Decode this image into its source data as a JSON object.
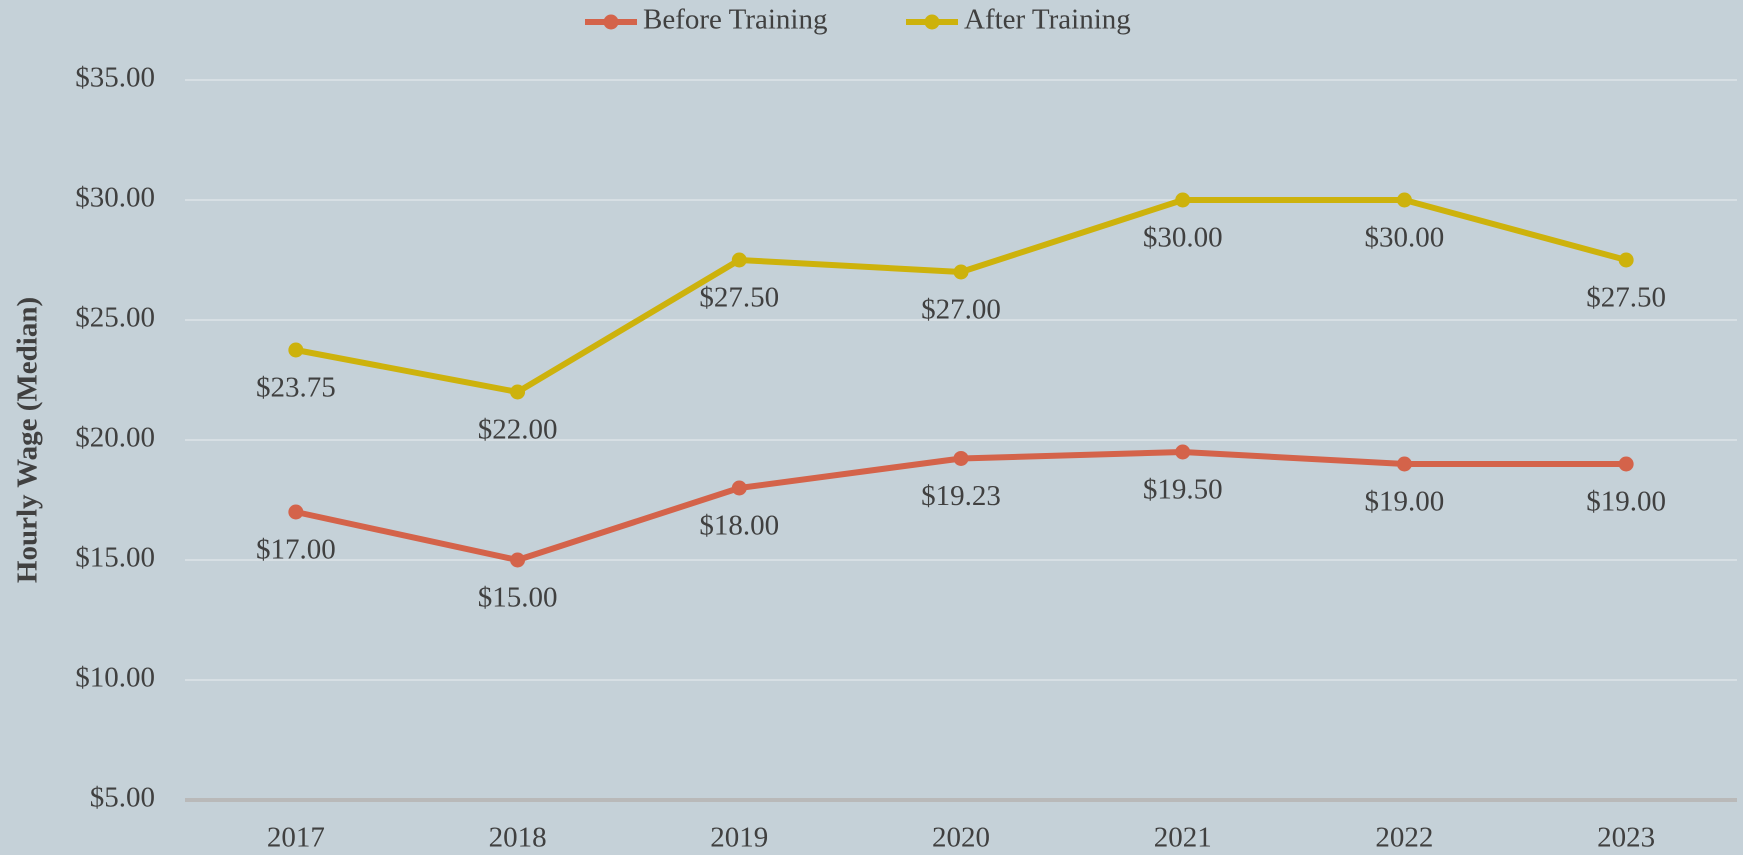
{
  "chart_data": {
    "type": "line",
    "y_axis_label": "Hourly Wage (Median)",
    "categories": [
      "2017",
      "2018",
      "2019",
      "2020",
      "2021",
      "2022",
      "2023"
    ],
    "series": [
      {
        "name": "Before Training",
        "color": "#d4634a",
        "values": [
          17,
          15,
          18,
          19.23,
          19.5,
          19,
          19
        ],
        "value_labels": [
          "$17.00",
          "$15.00",
          "$18.00",
          "$19.23",
          "$19.50",
          "$19.00",
          "$19.00"
        ]
      },
      {
        "name": "After Training",
        "color": "#cdb20c",
        "values": [
          23.75,
          22,
          27.5,
          27,
          30,
          30,
          27.5
        ],
        "value_labels": [
          "$23.75",
          "$22.00",
          "$27.50",
          "$27.00",
          "$30.00",
          "$30.00",
          "$27.50"
        ]
      }
    ],
    "ylim": [
      5,
      35
    ],
    "yticks": [
      {
        "value": 5,
        "label": "$5.00"
      },
      {
        "value": 10,
        "label": "$10.00"
      },
      {
        "value": 15,
        "label": "$15.00"
      },
      {
        "value": 20,
        "label": "$20.00"
      },
      {
        "value": 25,
        "label": "$25.00"
      },
      {
        "value": 30,
        "label": "$30.00"
      },
      {
        "value": 35,
        "label": "$35.00"
      }
    ],
    "grid": true,
    "legend": "top"
  }
}
